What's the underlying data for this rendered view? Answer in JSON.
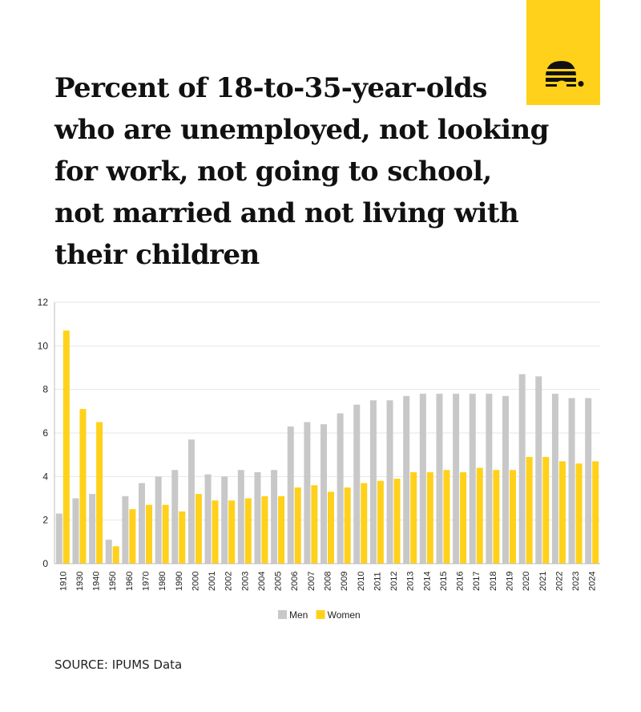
{
  "header": {
    "title": "Percent of 18-to-35-year-olds\nwho are unemployed, not looking\nfor work, not going to school,\nnot married and not living with\ntheir children",
    "logo_icon": "beehive-icon",
    "logo_color": "#ffd11a"
  },
  "chart_data": {
    "type": "bar",
    "title": "",
    "xlabel": "",
    "ylabel": "",
    "ylim": [
      0,
      12
    ],
    "yticks": [
      0,
      2,
      4,
      6,
      8,
      10,
      12
    ],
    "grid": true,
    "legend_position": "bottom-center",
    "categories": [
      "1910",
      "1930",
      "1940",
      "1950",
      "1960",
      "1970",
      "1980",
      "1990",
      "2000",
      "2001",
      "2002",
      "2003",
      "2004",
      "2005",
      "2006",
      "2007",
      "2008",
      "2009",
      "2010",
      "2011",
      "2012",
      "2013",
      "2014",
      "2015",
      "2016",
      "2017",
      "2018",
      "2019",
      "2020",
      "2021",
      "2022",
      "2023",
      "2024"
    ],
    "series": [
      {
        "name": "Men",
        "color": "#c8c8c8",
        "values": [
          2.3,
          3.0,
          3.2,
          1.1,
          3.1,
          3.7,
          4.0,
          4.3,
          5.7,
          4.1,
          4.0,
          4.3,
          4.2,
          4.3,
          6.3,
          6.5,
          6.4,
          6.9,
          7.3,
          7.5,
          7.5,
          7.7,
          7.8,
          7.8,
          7.8,
          7.8,
          7.8,
          7.7,
          8.7,
          8.6,
          7.8,
          7.6,
          7.6
        ]
      },
      {
        "name": "Women",
        "color": "#ffd11a",
        "values": [
          10.7,
          7.1,
          6.5,
          0.8,
          2.5,
          2.7,
          2.7,
          2.4,
          3.2,
          2.9,
          2.9,
          3.0,
          3.1,
          3.1,
          3.5,
          3.6,
          3.3,
          3.5,
          3.7,
          3.8,
          3.9,
          4.2,
          4.2,
          4.3,
          4.2,
          4.4,
          4.3,
          4.3,
          4.9,
          4.9,
          4.7,
          4.6,
          4.7
        ]
      }
    ]
  },
  "footer": {
    "source": "SOURCE: IPUMS Data"
  }
}
